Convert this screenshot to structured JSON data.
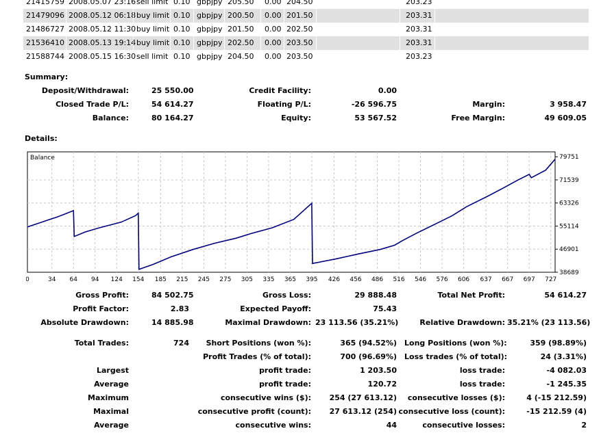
{
  "orders": [
    {
      "id": "21415759",
      "time": "2008.05.07 23:16",
      "type": "sell limit",
      "size": "0.10",
      "symbol": "gbpjpy",
      "price": "205.50",
      "sl": "0.00",
      "tp": "204.50",
      "current": "203.23",
      "alt": false
    },
    {
      "id": "21479096",
      "time": "2008.05.12 06:18",
      "type": "buy limit",
      "size": "0.10",
      "symbol": "gbpjpy",
      "price": "200.50",
      "sl": "0.00",
      "tp": "201.50",
      "current": "203.31",
      "alt": true
    },
    {
      "id": "21486727",
      "time": "2008.05.12 11:30",
      "type": "buy limit",
      "size": "0.10",
      "symbol": "gbpjpy",
      "price": "201.50",
      "sl": "0.00",
      "tp": "202.50",
      "current": "203.31",
      "alt": false
    },
    {
      "id": "21536410",
      "time": "2008.05.13 19:14",
      "type": "buy limit",
      "size": "0.10",
      "symbol": "gbpjpy",
      "price": "202.50",
      "sl": "0.00",
      "tp": "203.50",
      "current": "203.31",
      "alt": true
    },
    {
      "id": "21588744",
      "time": "2008.05.15 16:30",
      "type": "sell limit",
      "size": "0.10",
      "symbol": "gbpjpy",
      "price": "204.50",
      "sl": "0.00",
      "tp": "203.50",
      "current": "203.23",
      "alt": false
    }
  ],
  "summary": {
    "heading": "Summary:",
    "deposit_label": "Deposit/Withdrawal:",
    "deposit": "25 550.00",
    "credit_label": "Credit Facility:",
    "credit": "0.00",
    "closed_label": "Closed Trade P/L:",
    "closed": "54 614.27",
    "floating_label": "Floating P/L:",
    "floating": "-26 596.75",
    "margin_label": "Margin:",
    "margin": "3 958.47",
    "balance_label": "Balance:",
    "balance": "80 164.27",
    "equity_label": "Equity:",
    "equity": "53 567.52",
    "free_margin_label": "Free Margin:",
    "free_margin": "49 609.05"
  },
  "details": {
    "heading": "Details:"
  },
  "chart_data": {
    "type": "line",
    "title": "Balance",
    "series": [
      {
        "name": "",
        "x": [
          0,
          20,
          30,
          40,
          50,
          64,
          65,
          80,
          100,
          130,
          150,
          154,
          155,
          175,
          200,
          230,
          260,
          290,
          310,
          340,
          370,
          395,
          396,
          430,
          460,
          490,
          510,
          520,
          540,
          560,
          590,
          610,
          640,
          660,
          680,
          697,
          700,
          720,
          733
        ],
        "values": [
          54800,
          56500,
          57400,
          58200,
          59200,
          60600,
          51400,
          53000,
          54500,
          56500,
          58800,
          59700,
          39700,
          41500,
          44200,
          46800,
          49000,
          50800,
          52400,
          54500,
          57500,
          63200,
          41800,
          43500,
          45200,
          46800,
          48300,
          49800,
          52500,
          55000,
          58800,
          62000,
          65800,
          68500,
          71300,
          73500,
          72300,
          75000,
          78900
        ],
        "color": "#000080"
      }
    ],
    "xlim": [
      0,
      733
    ],
    "ylim": [
      38689,
      81500
    ],
    "x_ticks": [
      "0",
      "34",
      "64",
      "94",
      "124",
      "154",
      "185",
      "215",
      "245",
      "275",
      "305",
      "335",
      "365",
      "395",
      "426",
      "456",
      "486",
      "516",
      "546",
      "576",
      "606",
      "637",
      "667",
      "697",
      "727"
    ],
    "y_ticks": [
      "79751",
      "71539",
      "63326",
      "55114",
      "46901",
      "38689"
    ],
    "grid": true
  },
  "stats": {
    "gross_profit_label": "Gross Profit:",
    "gross_profit": "84 502.75",
    "gross_loss_label": "Gross Loss:",
    "gross_loss": "29 888.48",
    "total_net_profit_label": "Total Net Profit:",
    "total_net_profit": "54 614.27",
    "profit_factor_label": "Profit Factor:",
    "profit_factor": "2.83",
    "expected_payoff_label": "Expected Payoff:",
    "expected_payoff": "75.43",
    "absolute_drawdown_label": "Absolute Drawdown:",
    "absolute_drawdown": "14 885.98",
    "maximal_drawdown_label": "Maximal Drawdown:",
    "maximal_drawdown": "23 113.56 (35.21%)",
    "relative_drawdown_label": "Relative Drawdown:",
    "relative_drawdown": "35.21% (23 113.56)",
    "total_trades_label": "Total Trades:",
    "total_trades": "724",
    "short_positions_label": "Short Positions (won %):",
    "short_positions": "365 (94.52%)",
    "long_positions_label": "Long Positions (won %):",
    "long_positions": "359 (98.89%)",
    "profit_trades_label": "Profit Trades (% of total):",
    "profit_trades": "700 (96.69%)",
    "loss_trades_label": "Loss trades (% of total):",
    "loss_trades": "24 (3.31%)",
    "largest_label": "Largest",
    "largest_profit_label": "profit trade:",
    "largest_profit": "1 203.50",
    "largest_loss_label": "loss trade:",
    "largest_loss": "-4 082.03",
    "average_label": "Average",
    "average_profit_label": "profit trade:",
    "average_profit": "120.72",
    "average_loss_label": "loss trade:",
    "average_loss": "-1 245.35",
    "maximum_label": "Maximum",
    "max_wins_label": "consecutive wins ($):",
    "max_wins": "254 (27 613.12)",
    "max_losses_label": "consecutive losses ($):",
    "max_losses": "4 (-15 212.59)",
    "maximal_label": "Maximal",
    "maximal_profit_label": "consecutive profit (count):",
    "maximal_profit": "27 613.12 (254)",
    "maximal_loss_label": "consecutive loss (count):",
    "maximal_loss": "-15 212.59 (4)",
    "average2_label": "Average",
    "avg_cons_wins_label": "consecutive wins:",
    "avg_cons_wins": "44",
    "avg_cons_losses_label": "consecutive losses:",
    "avg_cons_losses": "2"
  }
}
